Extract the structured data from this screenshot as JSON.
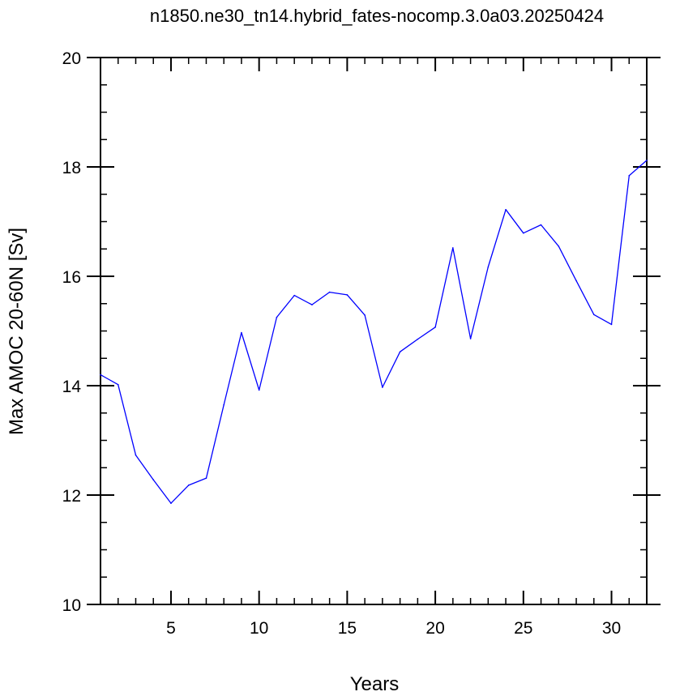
{
  "chart_data": {
    "type": "line",
    "title": "n1850.ne30_tn14.hybrid_fates-nocomp.3.0a03.20250424",
    "xlabel": "Years",
    "ylabel": "Max AMOC 20-60N [Sv]",
    "xlim": [
      1,
      32
    ],
    "ylim": [
      10,
      20
    ],
    "x_major_ticks": [
      5,
      10,
      15,
      20,
      25,
      30
    ],
    "x_minor_step": 1,
    "y_major_ticks": [
      10,
      12,
      14,
      16,
      18,
      20
    ],
    "y_minor_step": 0.5,
    "grid": false,
    "line_color": "#0000ff",
    "x": [
      1,
      2,
      3,
      4,
      5,
      6,
      7,
      8,
      9,
      10,
      11,
      12,
      13,
      14,
      15,
      16,
      17,
      18,
      19,
      20,
      21,
      22,
      23,
      24,
      25,
      26,
      27,
      28,
      29,
      30,
      31,
      32
    ],
    "values": [
      14.2,
      14.02,
      12.73,
      12.28,
      11.85,
      12.18,
      12.31,
      13.65,
      14.97,
      13.92,
      15.25,
      15.65,
      15.48,
      15.71,
      15.66,
      15.29,
      13.97,
      14.62,
      14.85,
      15.07,
      16.52,
      14.86,
      16.17,
      17.22,
      16.79,
      16.94,
      16.55,
      15.92,
      15.3,
      15.12,
      17.84,
      18.12
    ]
  }
}
